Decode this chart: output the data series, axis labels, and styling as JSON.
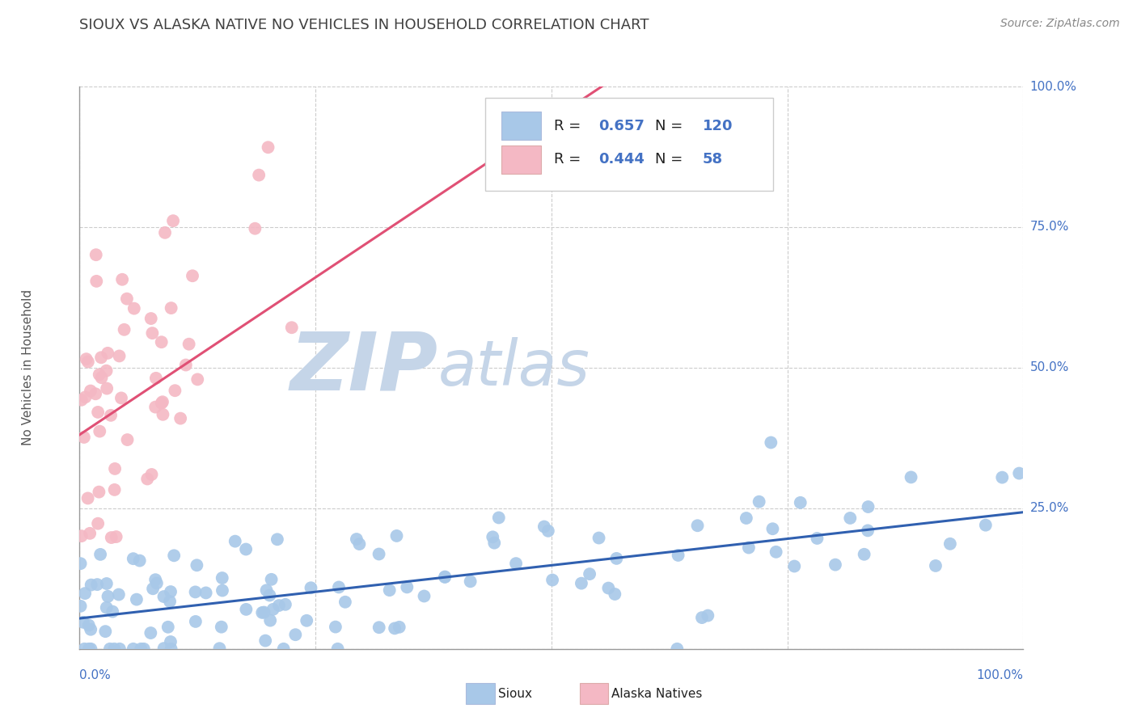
{
  "title": "SIOUX VS ALASKA NATIVE NO VEHICLES IN HOUSEHOLD CORRELATION CHART",
  "source_text": "Source: ZipAtlas.com",
  "ylabel": "No Vehicles in Household",
  "sioux_R": 0.657,
  "sioux_N": 120,
  "alaska_R": 0.444,
  "alaska_N": 58,
  "sioux_color": "#a8c8e8",
  "alaska_color": "#f4b8c4",
  "sioux_line_color": "#3060b0",
  "alaska_line_color": "#e05075",
  "legend_sioux_label": "Sioux",
  "legend_alaska_label": "Alaska Natives",
  "watermark_zip": "ZIP",
  "watermark_atlas": "atlas",
  "watermark_color_zip": "#c5d5e8",
  "watermark_color_atlas": "#c5d5e8",
  "background_color": "#ffffff",
  "grid_color": "#cccccc",
  "title_color": "#404040",
  "axis_label_color": "#4472c4",
  "right_tick_color": "#4472c4",
  "bottom_tick_color": "#4472c4"
}
